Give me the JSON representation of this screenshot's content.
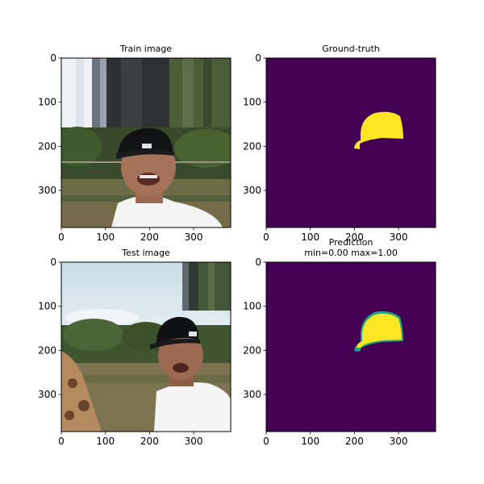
{
  "figure": {
    "panels": [
      {
        "id": "train-image",
        "title_lines": [
          "Train image"
        ],
        "kind": "photo",
        "x_ticks": [
          "0",
          "100",
          "200",
          "300"
        ],
        "y_ticks": [
          "0",
          "100",
          "200",
          "300"
        ]
      },
      {
        "id": "ground-truth",
        "title_lines": [
          "Ground-truth"
        ],
        "kind": "mask",
        "x_ticks": [
          "0",
          "100",
          "200",
          "300"
        ],
        "y_ticks": [
          "0",
          "100",
          "200",
          "300"
        ]
      },
      {
        "id": "test-image",
        "title_lines": [
          "Test image"
        ],
        "kind": "photo",
        "x_ticks": [
          "0",
          "100",
          "200",
          "300"
        ],
        "y_ticks": [
          "0",
          "100",
          "200",
          "300"
        ]
      },
      {
        "id": "prediction",
        "title_lines": [
          "Prediction",
          "min=0.00 max=1.00"
        ],
        "kind": "mask",
        "x_ticks": [
          "0",
          "100",
          "200",
          "300"
        ],
        "y_ticks": [
          "0",
          "100",
          "200",
          "300"
        ]
      }
    ],
    "colors": {
      "mask_background": "#440154",
      "mask_foreground": "#fde725",
      "mask_edge": "#21a585"
    }
  },
  "chart_data": [
    {
      "type": "heatmap",
      "title": "Train image",
      "xlim": [
        0,
        384
      ],
      "ylim": [
        384,
        0
      ],
      "x_ticks": [
        0,
        100,
        200,
        300
      ],
      "y_ticks": [
        0,
        100,
        200,
        300
      ],
      "content": "photo of a smiling man in a black cap"
    },
    {
      "type": "heatmap",
      "title": "Ground-truth",
      "xlim": [
        0,
        384
      ],
      "ylim": [
        384,
        0
      ],
      "x_ticks": [
        0,
        100,
        200,
        300
      ],
      "y_ticks": [
        0,
        100,
        200,
        300
      ],
      "colormap": "viridis",
      "value_range": [
        0,
        1
      ]
    },
    {
      "type": "heatmap",
      "title": "Test image",
      "xlim": [
        0,
        384
      ],
      "ylim": [
        384,
        0
      ],
      "x_ticks": [
        0,
        100,
        200,
        300
      ],
      "y_ticks": [
        0,
        100,
        200,
        300
      ],
      "content": "photo of a smiling man in a black cap with a giraffe"
    },
    {
      "type": "heatmap",
      "title": "Prediction",
      "subtitle": "min=0.00 max=1.00",
      "xlim": [
        0,
        384
      ],
      "ylim": [
        384,
        0
      ],
      "x_ticks": [
        0,
        100,
        200,
        300
      ],
      "y_ticks": [
        0,
        100,
        200,
        300
      ],
      "colormap": "viridis",
      "value_range": [
        0.0,
        1.0
      ]
    }
  ]
}
